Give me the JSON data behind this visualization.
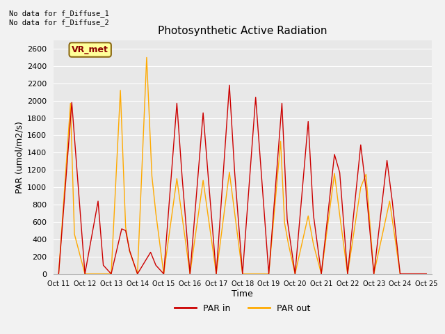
{
  "title": "Photosynthetic Active Radiation",
  "xlabel": "Time",
  "ylabel": "PAR (umol/m2/s)",
  "annotation_text": "No data for f_Diffuse_1\nNo data for f_Diffuse_2",
  "box_label": "VR_met",
  "legend_entries": [
    "PAR in",
    "PAR out"
  ],
  "legend_colors": [
    "#cc0000",
    "#ffaa00"
  ],
  "background_color": "#f2f2f2",
  "plot_bg_color": "#e8e8e8",
  "ylim": [
    0,
    2700
  ],
  "yticks": [
    0,
    200,
    400,
    600,
    800,
    1000,
    1200,
    1400,
    1600,
    1800,
    2000,
    2200,
    2400,
    2600
  ],
  "x_ticks": [
    "Oct 11",
    "Oct 12",
    "Oct 13",
    "Oct 14",
    "Oct 15",
    "Oct 16",
    "Oct 17",
    "Oct 18",
    "Oct 19",
    "Oct 20",
    "Oct 21",
    "Oct 22",
    "Oct 23",
    "Oct 24",
    "Oct 25"
  ],
  "par_in_x": [
    0.0,
    0.5,
    1.0,
    1.0,
    1.5,
    1.7,
    2.0,
    2.0,
    2.4,
    2.55,
    2.7,
    3.0,
    3.0,
    3.5,
    3.7,
    4.0,
    4.0,
    4.5,
    4.7,
    5.0,
    5.0,
    5.5,
    5.7,
    6.0,
    6.0,
    6.5,
    6.7,
    7.0,
    7.0,
    7.5,
    8.0,
    8.0,
    8.5,
    8.7,
    9.0,
    9.0,
    9.5,
    9.7,
    10.0,
    10.0,
    10.5,
    10.7,
    11.0,
    11.0,
    11.5,
    11.7,
    12.0,
    12.0,
    12.5,
    12.7,
    13.0,
    13.0,
    14.0
  ],
  "par_in_y": [
    0,
    1980,
    0,
    0,
    840,
    100,
    0,
    0,
    520,
    500,
    270,
    0,
    0,
    250,
    100,
    0,
    0,
    1970,
    1120,
    0,
    0,
    1860,
    1100,
    0,
    0,
    2180,
    1175,
    0,
    0,
    2040,
    0,
    0,
    1970,
    630,
    0,
    0,
    1760,
    680,
    0,
    0,
    1380,
    1170,
    0,
    0,
    1490,
    980,
    0,
    0,
    1310,
    840,
    0,
    0,
    0
  ],
  "par_out_x": [
    0.0,
    0.45,
    0.6,
    1.0,
    1.0,
    2.0,
    2.0,
    2.35,
    2.55,
    2.7,
    3.0,
    3.0,
    3.35,
    3.55,
    3.7,
    4.0,
    4.0,
    4.5,
    5.0,
    5.0,
    5.5,
    6.0,
    6.0,
    6.5,
    7.0,
    7.0,
    8.0,
    8.0,
    8.45,
    8.6,
    8.75,
    9.0,
    9.0,
    9.5,
    9.7,
    10.0,
    10.0,
    10.5,
    10.7,
    11.0,
    11.0,
    11.5,
    11.7,
    12.0,
    12.0,
    12.6,
    13.0,
    13.0,
    14.0
  ],
  "par_out_y": [
    0,
    1970,
    460,
    0,
    0,
    0,
    0,
    2120,
    540,
    260,
    0,
    0,
    2500,
    1130,
    700,
    0,
    0,
    1100,
    0,
    0,
    1080,
    0,
    0,
    1175,
    0,
    0,
    0,
    0,
    1530,
    590,
    340,
    0,
    0,
    670,
    340,
    0,
    0,
    1160,
    680,
    0,
    0,
    1000,
    1150,
    0,
    0,
    840,
    0,
    0,
    0
  ]
}
